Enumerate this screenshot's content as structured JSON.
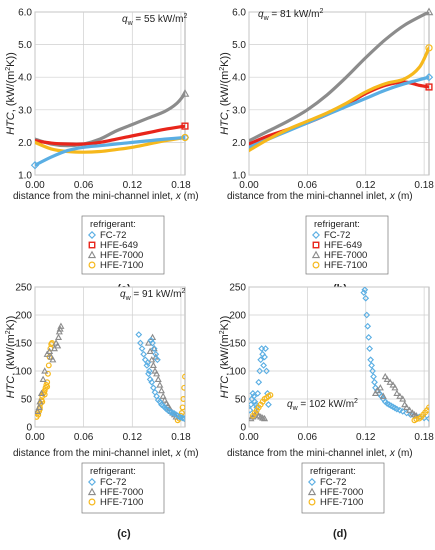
{
  "xlabel_prefix": "distance from the mini-channel inlet, ",
  "xlabel_x": "x",
  "xlabel_unit": " (m)",
  "ylabel_htc": "HTC",
  "ylabel_unit": ", (kW/(m",
  "ylabel_sup": "2",
  "ylabel_end": "K))",
  "q_prefix": "q",
  "q_sub": "w",
  "legend_title": "refrigerant:",
  "colors": {
    "FC-72": "#5aaee3",
    "HFE-649": "#e8251b",
    "HFE-7000": "#8c8c8c",
    "HFE-7100": "#f6b81c"
  },
  "chart_data": [
    {
      "id": "a",
      "type": "line",
      "panel_label": "(a)",
      "q_value": "= 55 kW/m",
      "q_sup": "2",
      "xlim": [
        0,
        0.185
      ],
      "ylim": [
        1.0,
        6.0
      ],
      "xticks": [
        "0.00",
        "0.06",
        "0.12",
        "0.18"
      ],
      "yticks": [
        "1.0",
        "2.0",
        "3.0",
        "4.0",
        "5.0",
        "6.0"
      ],
      "legend": [
        "FC-72",
        "HFE-649",
        "HFE-7000",
        "HFE-7100"
      ],
      "series": [
        {
          "name": "HFE-7000",
          "x": [
            0,
            0.02,
            0.04,
            0.06,
            0.08,
            0.1,
            0.12,
            0.14,
            0.16,
            0.175,
            0.185
          ],
          "y": [
            2.1,
            1.95,
            1.9,
            1.95,
            2.1,
            2.35,
            2.55,
            2.75,
            2.95,
            3.2,
            3.5
          ]
        },
        {
          "name": "HFE-649",
          "x": [
            0,
            0.02,
            0.04,
            0.06,
            0.08,
            0.1,
            0.12,
            0.14,
            0.16,
            0.185
          ],
          "y": [
            2.05,
            1.98,
            1.95,
            1.95,
            2.0,
            2.1,
            2.2,
            2.3,
            2.4,
            2.5
          ]
        },
        {
          "name": "HFE-7100",
          "x": [
            0,
            0.02,
            0.04,
            0.06,
            0.08,
            0.1,
            0.12,
            0.14,
            0.16,
            0.185
          ],
          "y": [
            2.0,
            1.8,
            1.72,
            1.7,
            1.72,
            1.78,
            1.85,
            1.95,
            2.05,
            2.15
          ]
        },
        {
          "name": "FC-72",
          "x": [
            0,
            0.02,
            0.04,
            0.06,
            0.08,
            0.1,
            0.12,
            0.14,
            0.16,
            0.185
          ],
          "y": [
            1.3,
            1.55,
            1.75,
            1.85,
            1.9,
            1.95,
            2.0,
            2.05,
            2.1,
            2.15
          ]
        }
      ],
      "endpoints": [
        {
          "series": "FC-72",
          "x": [
            0,
            0.185
          ],
          "y": [
            1.3,
            2.15
          ]
        },
        {
          "series": "HFE-649",
          "x": [
            0.185
          ],
          "y": [
            2.5
          ]
        },
        {
          "series": "HFE-7000",
          "x": [
            0.185
          ],
          "y": [
            3.5
          ]
        },
        {
          "series": "HFE-7100",
          "x": [
            0.185
          ],
          "y": [
            2.15
          ]
        }
      ]
    },
    {
      "id": "b",
      "type": "line",
      "panel_label": "(b)",
      "q_value": "= 81 kW/m",
      "q_sup": "2",
      "xlim": [
        0,
        0.185
      ],
      "ylim": [
        1.0,
        6.0
      ],
      "xticks": [
        "0.00",
        "0.06",
        "0.12",
        "0.18"
      ],
      "yticks": [
        "1.0",
        "2.0",
        "3.0",
        "4.0",
        "5.0",
        "6.0"
      ],
      "legend": [
        "FC-72",
        "HFE-649",
        "HFE-7000",
        "HFE-7100"
      ],
      "series": [
        {
          "name": "HFE-7000",
          "x": [
            0,
            0.02,
            0.04,
            0.06,
            0.08,
            0.1,
            0.12,
            0.14,
            0.16,
            0.185
          ],
          "y": [
            2.05,
            2.35,
            2.65,
            3.0,
            3.45,
            4.0,
            4.6,
            5.15,
            5.6,
            6.0
          ]
        },
        {
          "name": "HFE-649",
          "x": [
            0,
            0.02,
            0.04,
            0.06,
            0.08,
            0.1,
            0.12,
            0.14,
            0.16,
            0.175,
            0.185
          ],
          "y": [
            1.95,
            2.2,
            2.4,
            2.6,
            2.85,
            3.15,
            3.5,
            3.75,
            3.85,
            3.75,
            3.7
          ]
        },
        {
          "name": "FC-72",
          "x": [
            0,
            0.02,
            0.04,
            0.06,
            0.08,
            0.1,
            0.12,
            0.14,
            0.16,
            0.185
          ],
          "y": [
            1.85,
            2.1,
            2.35,
            2.6,
            2.85,
            3.1,
            3.35,
            3.6,
            3.8,
            4.0
          ]
        },
        {
          "name": "HFE-7100",
          "x": [
            0,
            0.02,
            0.04,
            0.06,
            0.08,
            0.1,
            0.12,
            0.14,
            0.16,
            0.175,
            0.185
          ],
          "y": [
            1.75,
            2.1,
            2.4,
            2.65,
            2.9,
            3.2,
            3.55,
            3.8,
            3.95,
            4.3,
            4.9
          ]
        }
      ],
      "endpoints": [
        {
          "series": "FC-72",
          "x": [
            0.185
          ],
          "y": [
            4.0
          ]
        },
        {
          "series": "HFE-649",
          "x": [
            0.185
          ],
          "y": [
            3.7
          ]
        },
        {
          "series": "HFE-7000",
          "x": [
            0.185
          ],
          "y": [
            6.0
          ]
        },
        {
          "series": "HFE-7100",
          "x": [
            0.185
          ],
          "y": [
            4.9
          ]
        }
      ]
    },
    {
      "id": "c",
      "type": "scatter",
      "panel_label": "(c)",
      "q_value": "= 91 kW/m",
      "q_sup": "2",
      "xlim": [
        0,
        0.185
      ],
      "ylim": [
        0,
        250
      ],
      "xticks": [
        "0.00",
        "0.06",
        "0.12",
        "0.18"
      ],
      "yticks": [
        "0",
        "50",
        "100",
        "150",
        "200",
        "250"
      ],
      "legend": [
        "FC-72",
        "HFE-7000",
        "HFE-7100"
      ],
      "series": [
        {
          "name": "HFE-7100",
          "x": [
            0.002,
            0.004,
            0.005,
            0.006,
            0.007,
            0.008,
            0.009,
            0.01,
            0.011,
            0.012,
            0.013,
            0.014,
            0.015,
            0.016,
            0.017,
            0.018,
            0.019,
            0.02,
            0.021,
            0.003,
            0.006,
            0.009,
            0.012,
            0.015,
            0.18,
            0.181,
            0.182,
            0.183,
            0.184,
            0.185,
            0.178,
            0.176
          ],
          "y": [
            18,
            22,
            28,
            35,
            42,
            48,
            55,
            60,
            62,
            65,
            70,
            75,
            80,
            95,
            110,
            125,
            140,
            148,
            150,
            25,
            32,
            45,
            58,
            72,
            20,
            25,
            35,
            50,
            70,
            90,
            15,
            12
          ]
        },
        {
          "name": "HFE-7000",
          "x": [
            0.003,
            0.005,
            0.006,
            0.008,
            0.01,
            0.012,
            0.015,
            0.018,
            0.02,
            0.022,
            0.024,
            0.026,
            0.028,
            0.029,
            0.03,
            0.031,
            0.032,
            0.14,
            0.142,
            0.144,
            0.146,
            0.148,
            0.15,
            0.152,
            0.154,
            0.156,
            0.158,
            0.16,
            0.162,
            0.164,
            0.166,
            0.168,
            0.17,
            0.172,
            0.174,
            0.145,
            0.147,
            0.149
          ],
          "y": [
            28,
            35,
            45,
            60,
            85,
            100,
            130,
            135,
            125,
            120,
            140,
            150,
            145,
            160,
            170,
            175,
            180,
            150,
            135,
            120,
            110,
            100,
            95,
            85,
            75,
            65,
            55,
            48,
            42,
            38,
            33,
            28,
            25,
            22,
            18,
            160,
            140,
            125
          ]
        },
        {
          "name": "FC-72",
          "x": [
            0.128,
            0.13,
            0.132,
            0.134,
            0.136,
            0.138,
            0.14,
            0.142,
            0.144,
            0.146,
            0.148,
            0.15,
            0.152,
            0.154,
            0.156,
            0.158,
            0.16,
            0.162,
            0.164,
            0.166,
            0.168,
            0.17,
            0.172,
            0.174,
            0.176,
            0.178,
            0.18,
            0.182,
            0.184,
            0.143,
            0.145,
            0.147,
            0.149,
            0.151,
            0.141,
            0.139
          ],
          "y": [
            165,
            150,
            140,
            130,
            120,
            110,
            95,
            85,
            80,
            70,
            62,
            55,
            48,
            45,
            40,
            38,
            35,
            32,
            30,
            28,
            26,
            25,
            24,
            22,
            20,
            18,
            17,
            16,
            15,
            155,
            150,
            140,
            130,
            120,
            100,
            115
          ]
        }
      ]
    },
    {
      "id": "d",
      "type": "scatter",
      "panel_label": "(d)",
      "q_value": "= 102 kW/m",
      "q_sup": "2",
      "xlim": [
        0,
        0.185
      ],
      "ylim": [
        0,
        250
      ],
      "xticks": [
        "0.00",
        "0.06",
        "0.12",
        "0.18"
      ],
      "yticks": [
        "0",
        "50",
        "100",
        "150",
        "200",
        "250"
      ],
      "legend": [
        "FC-72",
        "HFE-7000",
        "HFE-7100"
      ],
      "series": [
        {
          "name": "FC-72",
          "x": [
            0.001,
            0.002,
            0.003,
            0.004,
            0.005,
            0.006,
            0.007,
            0.008,
            0.009,
            0.01,
            0.011,
            0.012,
            0.013,
            0.014,
            0.015,
            0.016,
            0.017,
            0.018,
            0.019,
            0.02,
            0.118,
            0.119,
            0.12,
            0.121,
            0.122,
            0.123,
            0.124,
            0.125,
            0.126,
            0.127,
            0.128,
            0.129,
            0.13,
            0.132,
            0.134,
            0.136,
            0.138,
            0.14,
            0.142,
            0.144,
            0.146,
            0.148,
            0.15,
            0.152,
            0.155,
            0.158,
            0.162,
            0.166,
            0.17,
            0.175,
            0.18,
            0.185
          ],
          "y": [
            30,
            40,
            50,
            60,
            55,
            45,
            40,
            35,
            60,
            80,
            100,
            120,
            140,
            130,
            110,
            125,
            140,
            100,
            60,
            40,
            240,
            245,
            230,
            200,
            180,
            160,
            140,
            120,
            110,
            100,
            90,
            80,
            70,
            65,
            60,
            55,
            50,
            45,
            42,
            40,
            38,
            36,
            34,
            32,
            30,
            28,
            25,
            22,
            20,
            18,
            16,
            15
          ]
        },
        {
          "name": "HFE-7000",
          "x": [
            0.002,
            0.004,
            0.006,
            0.008,
            0.01,
            0.012,
            0.014,
            0.016,
            0.13,
            0.132,
            0.135,
            0.138,
            0.14,
            0.142,
            0.145,
            0.148,
            0.15,
            0.152,
            0.155,
            0.158,
            0.16,
            0.162,
            0.165,
            0.168,
            0.17,
            0.172
          ],
          "y": [
            15,
            18,
            22,
            25,
            20,
            18,
            16,
            15,
            60,
            65,
            70,
            55,
            90,
            85,
            80,
            75,
            70,
            60,
            55,
            50,
            40,
            35,
            30,
            25,
            22,
            20
          ]
        },
        {
          "name": "HFE-7100",
          "x": [
            0.004,
            0.006,
            0.008,
            0.01,
            0.012,
            0.014,
            0.016,
            0.018,
            0.02,
            0.022,
            0.175,
            0.177,
            0.179,
            0.181,
            0.183,
            0.185,
            0.17,
            0.172
          ],
          "y": [
            20,
            25,
            30,
            35,
            40,
            45,
            50,
            52,
            55,
            57,
            15,
            18,
            22,
            26,
            30,
            35,
            12,
            14
          ]
        }
      ]
    }
  ]
}
